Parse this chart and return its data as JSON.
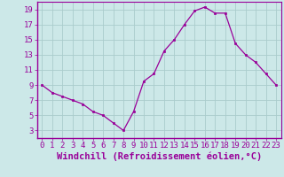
{
  "x": [
    0,
    1,
    2,
    3,
    4,
    5,
    6,
    7,
    8,
    9,
    10,
    11,
    12,
    13,
    14,
    15,
    16,
    17,
    18,
    19,
    20,
    21,
    22,
    23
  ],
  "y": [
    9.0,
    8.0,
    7.5,
    7.0,
    6.5,
    5.5,
    5.0,
    4.0,
    3.0,
    5.5,
    9.5,
    10.5,
    13.5,
    15.0,
    17.0,
    18.8,
    19.3,
    18.5,
    18.5,
    14.5,
    13.0,
    12.0,
    10.5,
    9.0
  ],
  "line_color": "#990099",
  "marker": "s",
  "marker_size": 2,
  "bg_color": "#cce8e8",
  "grid_color": "#aacccc",
  "xlabel": "Windchill (Refroidissement éolien,°C)",
  "xlim": [
    -0.5,
    23.5
  ],
  "ylim": [
    2,
    20
  ],
  "yticks": [
    3,
    5,
    7,
    9,
    11,
    13,
    15,
    17,
    19
  ],
  "xticks": [
    0,
    1,
    2,
    3,
    4,
    5,
    6,
    7,
    8,
    9,
    10,
    11,
    12,
    13,
    14,
    15,
    16,
    17,
    18,
    19,
    20,
    21,
    22,
    23
  ],
  "xlabel_fontsize": 7.5,
  "tick_fontsize": 6.5,
  "line_color_spine": "#990099",
  "axis_label_color": "#990099",
  "tick_color": "#990099"
}
